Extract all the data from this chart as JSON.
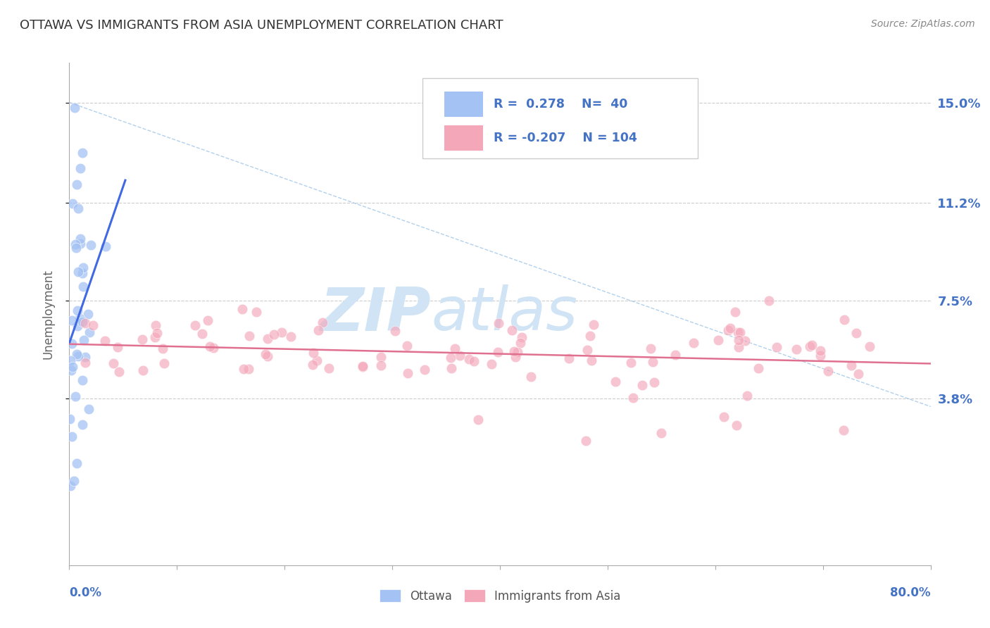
{
  "title": "OTTAWA VS IMMIGRANTS FROM ASIA UNEMPLOYMENT CORRELATION CHART",
  "source": "Source: ZipAtlas.com",
  "ylabel": "Unemployment",
  "xmin": 0.0,
  "xmax": 80.0,
  "ymin": -2.5,
  "ymax": 16.5,
  "ytick_vals": [
    3.8,
    7.5,
    11.2,
    15.0
  ],
  "ytick_labels": [
    "3.8%",
    "7.5%",
    "11.2%",
    "15.0%"
  ],
  "blue_color": "#a4c2f4",
  "pink_color": "#f4a7b9",
  "trend_blue": "#4169e1",
  "trend_pink": "#e07090",
  "ref_line_color": "#9fc5e8",
  "watermark_zip": "ZIP",
  "watermark_atlas": "atlas",
  "watermark_color": "#d0e4f5",
  "background_color": "#ffffff",
  "grid_color": "#cccccc",
  "title_color": "#333333",
  "source_color": "#888888",
  "ylabel_color": "#666666",
  "xtick_color": "#4472c4",
  "ytick_color": "#4472c4",
  "legend_r1": "R =  0.278",
  "legend_n1": "N=  40",
  "legend_r2": "R = -0.207",
  "legend_n2": "N = 104",
  "ottawa_label": "Ottawa",
  "asia_label": "Immigrants from Asia",
  "ottawa_seed": 12,
  "asia_seed": 99
}
